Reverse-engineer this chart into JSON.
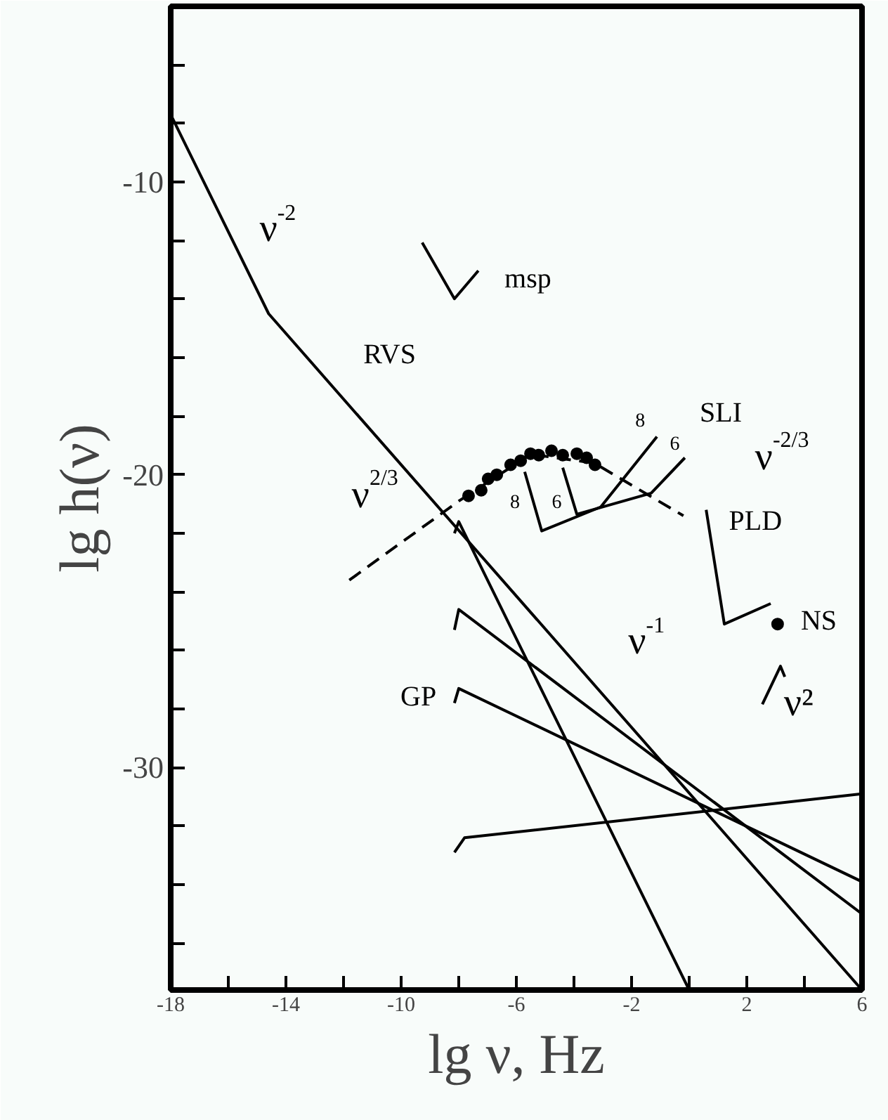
{
  "chart_data": {
    "type": "line",
    "xlabel": "lg ν, Hz",
    "ylabel": "lg h(ν)",
    "xlim": [
      -18,
      6
    ],
    "ylim": [
      -37.6,
      -4
    ],
    "xticks": [
      -18,
      {
        "value": -16,
        "label": null
      },
      -14,
      {
        "value": -12,
        "label": null
      },
      -10,
      {
        "value": -8,
        "label": null
      },
      -6,
      {
        "value": -4,
        "label": null
      },
      -2,
      {
        "value": 0,
        "label": null
      },
      2,
      {
        "value": 4,
        "label": null
      },
      6
    ],
    "yticks": [
      {
        "value": -36,
        "label": null
      },
      {
        "value": -34,
        "label": null
      },
      {
        "value": -32,
        "label": null
      },
      -30,
      {
        "value": -28,
        "label": null
      },
      {
        "value": -26,
        "label": null
      },
      {
        "value": -24,
        "label": null
      },
      {
        "value": -22,
        "label": null
      },
      -20,
      {
        "value": -18,
        "label": null
      },
      {
        "value": -16,
        "label": null
      },
      {
        "value": -14,
        "label": null
      },
      {
        "value": -12,
        "label": null
      },
      -10,
      {
        "value": -8,
        "label": null
      },
      {
        "value": -6,
        "label": null
      }
    ],
    "grid": false,
    "series": [
      {
        "color": "#000000",
        "x": [
          -18,
          -14.6,
          6
        ],
        "values": [
          -7.7,
          -14.5,
          -37.6
        ]
      },
      {
        "color": "#000000",
        "x": [
          -8.15,
          -8.0,
          0.0
        ],
        "values": [
          -22.0,
          -21.6,
          -37.6
        ]
      },
      {
        "color": "#000000",
        "x": [
          -8.15,
          -8.0,
          6
        ],
        "values": [
          -25.3,
          -24.6,
          -35.0
        ]
      },
      {
        "color": "#000000",
        "x": [
          -8.15,
          -8.0,
          6
        ],
        "values": [
          -27.8,
          -27.3,
          -33.9
        ]
      },
      {
        "color": "#000000",
        "x": [
          -8.15,
          -7.8,
          6
        ],
        "values": [
          -32.9,
          -32.4,
          -30.9
        ]
      },
      {
        "color": "#000000",
        "line_style": "dashed",
        "x": [
          -11.8,
          -8.0,
          -5.5,
          -3.3,
          -0.2
        ],
        "values": [
          -23.6,
          -20.9,
          -19.3,
          -19.6,
          -21.4
        ]
      },
      {
        "type": "scatter",
        "color": "#000000",
        "marker": "circle",
        "x": [
          -7.66,
          -7.22,
          -6.98,
          -6.68,
          -6.2,
          -5.85,
          -5.51,
          -5.22,
          -4.78,
          -4.39,
          -3.9,
          -3.56,
          -3.27
        ],
        "values": [
          -20.72,
          -20.53,
          -20.14,
          -20.0,
          -19.66,
          -19.52,
          -19.28,
          -19.33,
          -19.18,
          -19.33,
          -19.28,
          -19.42,
          -19.66
        ]
      },
      {
        "color": "#000000",
        "x": [
          -9.27,
          -8.15,
          -7.32
        ],
        "values": [
          -12.07,
          -13.99,
          -13.03
        ]
      },
      {
        "color": "#000000",
        "x": [
          -5.71,
          -5.12,
          -3.07,
          -1.12
        ],
        "values": [
          -19.9,
          -21.92,
          -21.1,
          -18.7
        ]
      },
      {
        "color": "#000000",
        "x": [
          -4.39,
          -3.9,
          -1.32,
          -0.15
        ],
        "values": [
          -19.76,
          -21.35,
          -20.63,
          -19.42
        ]
      },
      {
        "color": "#000000",
        "x": [
          0.59,
          1.22,
          2.83
        ],
        "values": [
          -21.2,
          -25.1,
          -24.4
        ]
      },
      {
        "color": "#000000",
        "x": [
          2.54,
          3.17,
          3.32
        ],
        "values": [
          -27.84,
          -26.54,
          -26.9
        ]
      },
      {
        "type": "scatter",
        "color": "#000000",
        "marker": "circle",
        "x": [
          3.07
        ],
        "values": [
          -25.1
        ]
      }
    ],
    "annotations": [
      "ν$^{-2}$",
      "RVS",
      "msp",
      "SLI",
      "ν$^{-2/3}$",
      "PLD",
      "NS",
      "ν$^{-1}$",
      "ν²",
      "GP",
      "ν$^{2/3}$",
      "8",
      "6",
      "8",
      "6"
    ]
  }
}
